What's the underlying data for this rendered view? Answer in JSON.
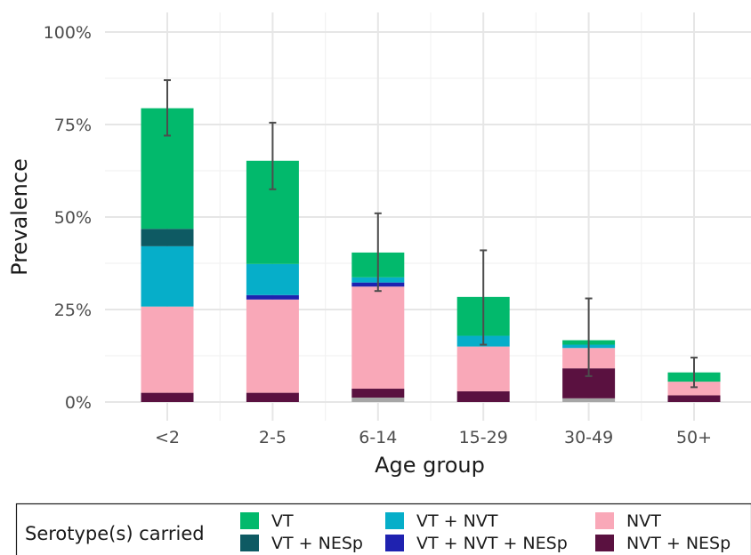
{
  "chart_data": {
    "type": "bar",
    "stacked": true,
    "xlabel": "Age group",
    "ylabel": "Prevalence",
    "ylim": [
      0,
      100
    ],
    "y_ticks": [
      "0%",
      "25%",
      "50%",
      "75%",
      "100%"
    ],
    "y_tick_values": [
      0,
      25,
      50,
      75,
      100
    ],
    "categories": [
      "<2",
      "2-5",
      "6-14",
      "15-29",
      "30-49",
      "50+"
    ],
    "series": [
      {
        "key": "unlabeled",
        "name": "",
        "color": "#a6a6a6",
        "values": [
          0,
          0,
          1.2,
          0,
          1.0,
          0
        ]
      },
      {
        "key": "nvt_nesp",
        "name": "NVT + NESp",
        "color": "#5a1140",
        "values": [
          2.5,
          2.5,
          2.4,
          2.9,
          8.1,
          1.8
        ]
      },
      {
        "key": "nvt",
        "name": "NVT",
        "color": "#f9a8b8",
        "values": [
          23.3,
          25.2,
          27.6,
          12.1,
          5.5,
          3.7
        ]
      },
      {
        "key": "vt_nvt_nesp",
        "name": "VT + NVT + NESp",
        "color": "#1f22b0",
        "values": [
          0,
          1.2,
          1.1,
          0,
          0,
          0
        ]
      },
      {
        "key": "vt_nvt",
        "name": "VT + NVT",
        "color": "#06aec9",
        "values": [
          16.3,
          8.4,
          1.4,
          2.9,
          0.9,
          0
        ]
      },
      {
        "key": "vt_nesp",
        "name": "VT + NESp",
        "color": "#0e5a63",
        "values": [
          4.7,
          0,
          0,
          0,
          0,
          0
        ]
      },
      {
        "key": "vt",
        "name": "VT",
        "color": "#02b96c",
        "values": [
          32.6,
          27.9,
          6.7,
          10.5,
          1.2,
          2.5
        ]
      }
    ],
    "error_bars": {
      "lower": [
        72,
        57.5,
        30,
        15.5,
        7,
        4
      ],
      "upper": [
        87,
        75.5,
        51,
        41,
        28,
        12
      ]
    },
    "grid": true,
    "legend": {
      "title": "Serotype(s) carried",
      "position": "bottom",
      "order": [
        "vt",
        "vt_nesp",
        "vt_nvt",
        "vt_nvt_nesp",
        "nvt",
        "nvt_nesp"
      ]
    }
  }
}
